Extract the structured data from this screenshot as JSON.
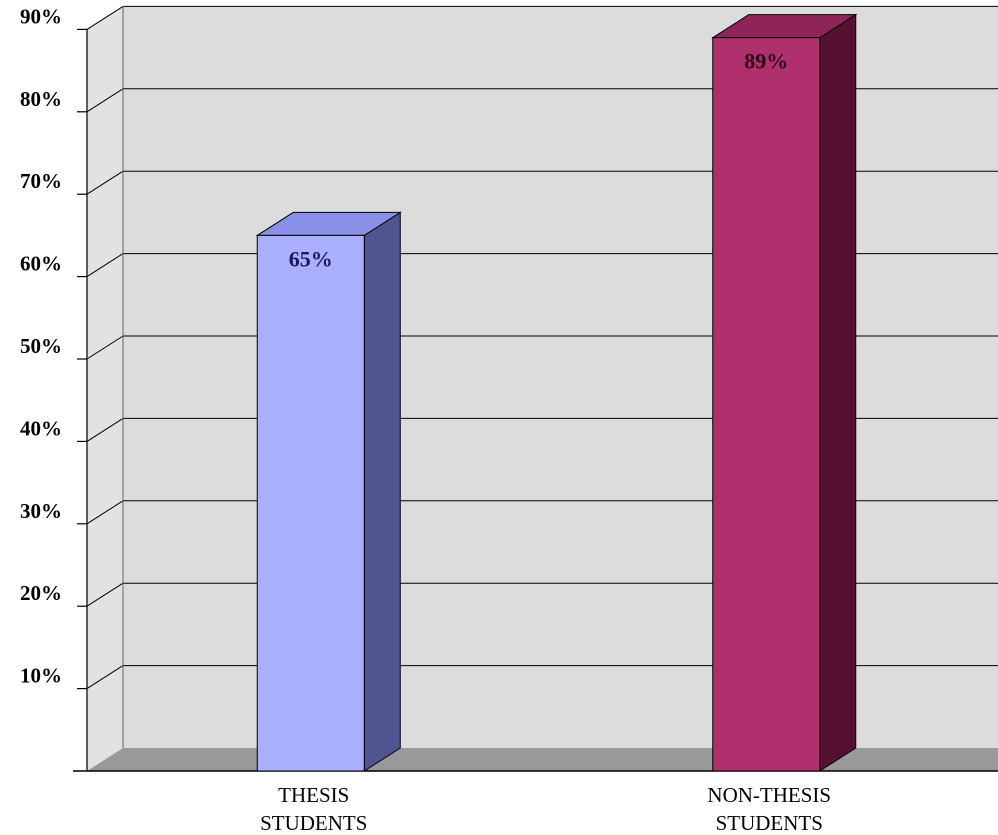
{
  "chart_data": {
    "type": "bar",
    "categories": [
      [
        "THESIS",
        "STUDENTS"
      ],
      [
        "NON-THESIS",
        "STUDENTS"
      ]
    ],
    "values": [
      65,
      89
    ],
    "data_labels": [
      "65%",
      "89%"
    ],
    "yticks": [
      10,
      20,
      30,
      40,
      50,
      60,
      70,
      80,
      90
    ],
    "ytick_labels": [
      "10%",
      "20%",
      "30%",
      "40%",
      "50%",
      "60%",
      "70%",
      "80%",
      "90%"
    ],
    "ylim": [
      0,
      90
    ],
    "grid": true,
    "style": "3d",
    "colors": [
      {
        "front": "#aab0ff",
        "side": "#4f5590",
        "top": "#8a90e8",
        "label": "#1a1a5a"
      },
      {
        "front": "#b0306e",
        "side": "#55112f",
        "top": "#8e2458",
        "label": "#2a0a18"
      }
    ],
    "wall_color": "#dcdcdc",
    "floor_color": "#999999"
  }
}
